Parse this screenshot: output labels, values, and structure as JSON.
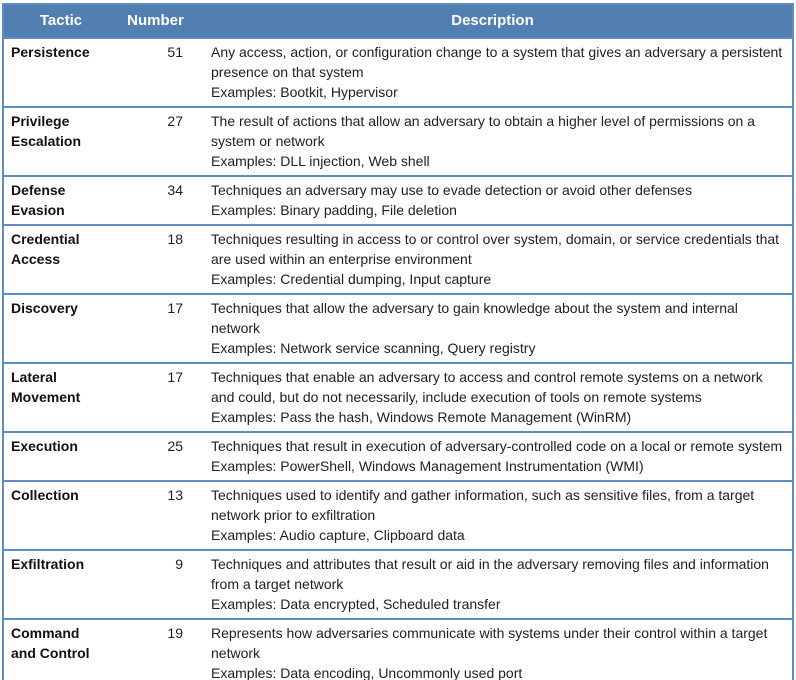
{
  "table": {
    "columns": [
      {
        "label": "Tactic"
      },
      {
        "label": "Number"
      },
      {
        "label": "Description"
      }
    ],
    "rows": [
      {
        "tactic": "Persistence",
        "number": "51",
        "description": "Any access, action, or configuration change to a system that gives an adversary a persistent presence on that system",
        "examples": "Examples: Bootkit, Hypervisor"
      },
      {
        "tactic": "Privilege Escalation",
        "number": "27",
        "description": "The result of actions that allow an adversary to obtain a higher level of permissions on a system or network",
        "examples": "Examples: DLL injection, Web shell"
      },
      {
        "tactic": "Defense Evasion",
        "number": "34",
        "description": "Techniques an adversary may use to evade detection or avoid other defenses",
        "examples": "Examples: Binary padding, File deletion"
      },
      {
        "tactic": "Credential Access",
        "number": "18",
        "description": "Techniques resulting in access to or control over system, domain, or service credentials that are used within an enterprise environment",
        "examples": "Examples: Credential dumping, Input capture"
      },
      {
        "tactic": "Discovery",
        "number": "17",
        "description": "Techniques that allow the adversary to gain knowledge about the system and internal network",
        "examples": "Examples: Network service scanning, Query registry"
      },
      {
        "tactic": "Lateral Movement",
        "number": "17",
        "description": "Techniques that enable an adversary to access and control remote systems on a network and could, but do not necessarily, include execution of tools on remote systems",
        "examples": "Examples: Pass the hash, Windows Remote Management (WinRM)"
      },
      {
        "tactic": "Execution",
        "number": "25",
        "description": "Techniques that result in execution of adversary-controlled code on a local or remote system",
        "examples": "Examples: PowerShell, Windows Management Instrumentation (WMI)"
      },
      {
        "tactic": "Collection",
        "number": "13",
        "description": "Techniques used to identify and gather information, such as sensitive files, from a target network prior to exfiltration",
        "examples": "Examples: Audio capture, Clipboard data"
      },
      {
        "tactic": "Exfiltration",
        "number": "9",
        "description": "Techniques and attributes that result or aid in the adversary removing files and information from a target network",
        "examples": "Examples: Data encrypted, Scheduled transfer"
      },
      {
        "tactic": "Command and Control",
        "number": "19",
        "description": "Represents how adversaries communicate with systems under their control within a target network",
        "examples": "Examples: Data encoding, Uncommonly used port"
      }
    ]
  },
  "colors": {
    "header_bg": "#527fb2",
    "header_text": "#ffffff",
    "border": "#5f8cc1",
    "body_text": "#1f1f1f"
  }
}
